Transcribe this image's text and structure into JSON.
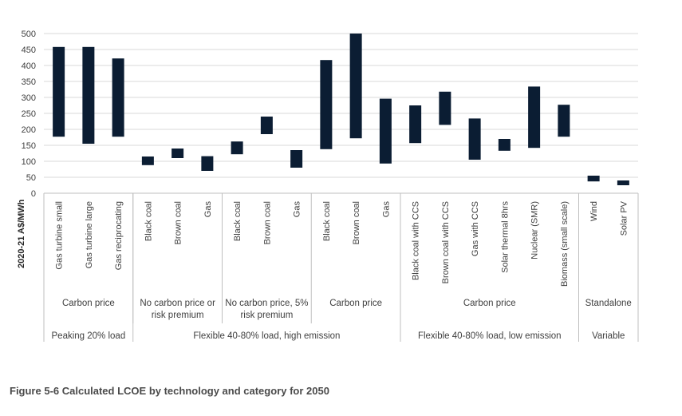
{
  "caption": "Figure 5-6 Calculated LCOE by technology and category for 2050",
  "chart_data": {
    "type": "floating-bar",
    "ylabel": "2020-21 A$/MWh",
    "ylim": [
      0,
      500
    ],
    "yticks": [
      0,
      50,
      100,
      150,
      200,
      250,
      300,
      350,
      400,
      450,
      500
    ],
    "grid": true,
    "bar_color": "#0b1d33",
    "categories": [
      "Gas turbine small",
      "Gas turbine large",
      "Gas reciprocating",
      "Black coal",
      "Brown coal",
      "Gas",
      "Black coal",
      "Brown coal",
      "Gas",
      "Black coal",
      "Brown coal",
      "Gas",
      "Black coal with CCS",
      "Brown coal with CCS",
      "Gas with CCS",
      "Solar thermal 8hrs",
      "Nuclear (SMR)",
      "Biomass (small scale)",
      "Wind",
      "Solar PV"
    ],
    "low": [
      177,
      155,
      177,
      88,
      110,
      70,
      122,
      185,
      80,
      138,
      172,
      93,
      157,
      214,
      105,
      133,
      142,
      177,
      37,
      25
    ],
    "high": [
      458,
      458,
      422,
      115,
      140,
      116,
      162,
      240,
      135,
      417,
      500,
      296,
      275,
      318,
      234,
      170,
      334,
      277,
      55,
      40
    ],
    "subgroups": [
      {
        "label": "Carbon price",
        "start": 0,
        "end": 2
      },
      {
        "label": "No carbon price or risk premium",
        "lines": [
          "No carbon price or",
          "risk premium"
        ],
        "start": 3,
        "end": 5
      },
      {
        "label": "No carbon price, 5% risk premium",
        "lines": [
          "No carbon price, 5%",
          "risk premium"
        ],
        "start": 6,
        "end": 8
      },
      {
        "label": "Carbon price",
        "start": 9,
        "end": 11
      },
      {
        "label": "Carbon price",
        "start": 12,
        "end": 17
      },
      {
        "label": "Standalone",
        "start": 18,
        "end": 19
      }
    ],
    "groups": [
      {
        "label": "Peaking 20% load",
        "start": 0,
        "end": 2
      },
      {
        "label": "Flexible 40-80% load, high emission",
        "start": 3,
        "end": 11
      },
      {
        "label": "Flexible 40-80% load, low emission",
        "start": 12,
        "end": 17
      },
      {
        "label": "Variable",
        "start": 18,
        "end": 19
      }
    ]
  }
}
